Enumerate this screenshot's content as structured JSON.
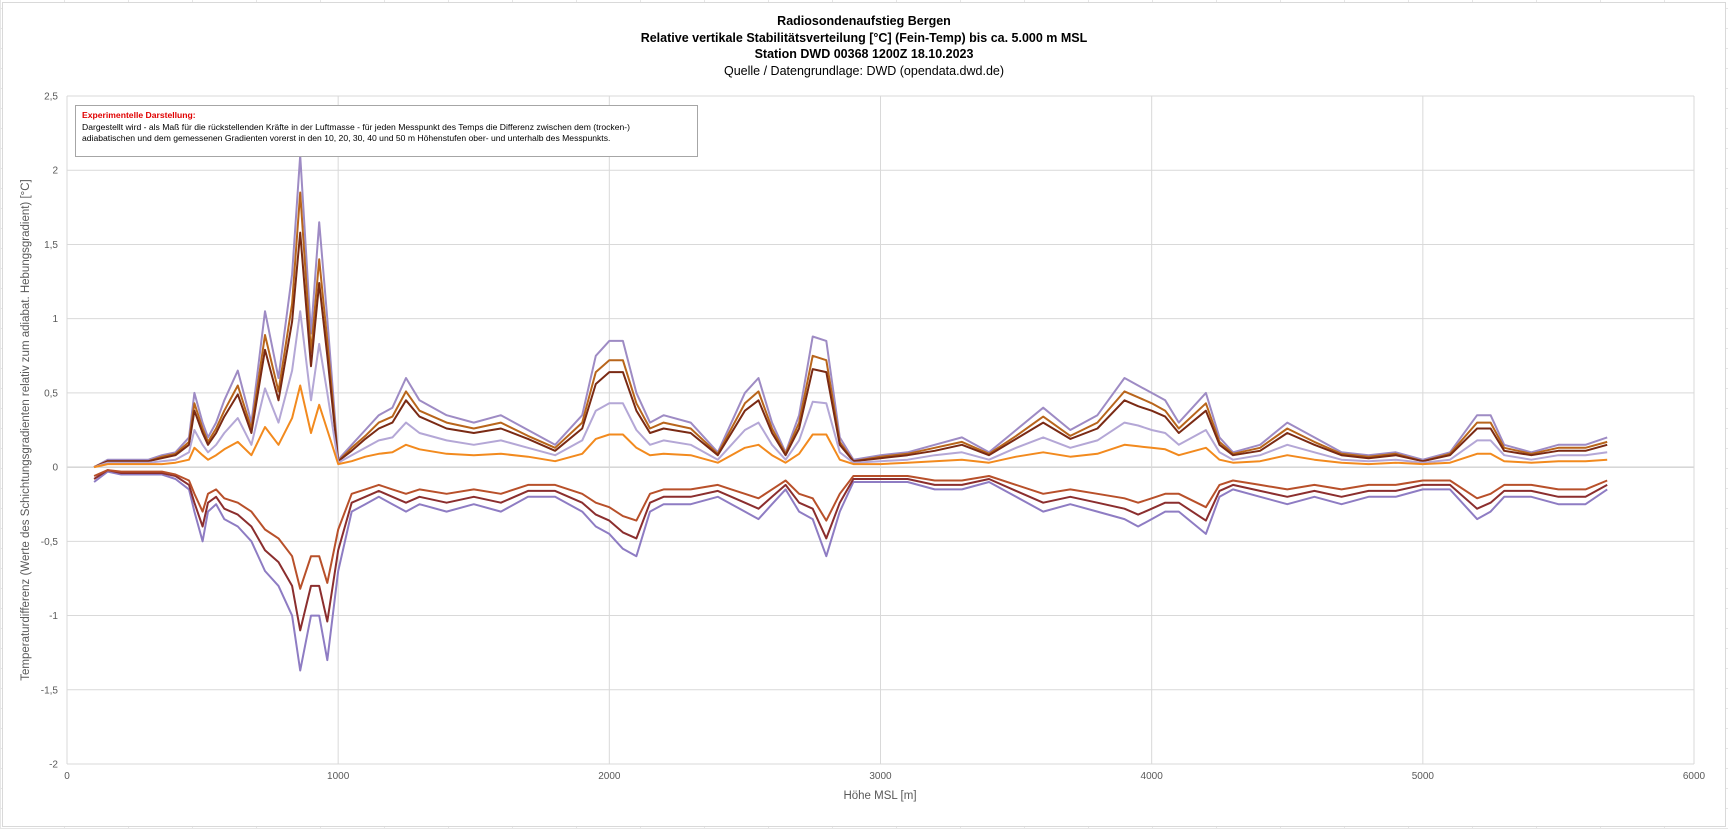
{
  "chart_data": {
    "type": "line",
    "title_lines": [
      "Radiosondenaufstieg Bergen",
      "Relative vertikale Stabilitätsverteilung [°C] (Fein-Temp) bis ca. 5.000 m MSL",
      "Station DWD 00368 1200Z 18.10.2023"
    ],
    "subtitle": "Quelle / Datengrundlage: DWD (opendata.dwd.de)",
    "annotation": {
      "heading": "Experimentelle Darstellung:",
      "line1": "Dargestellt wird - als Maß für die rückstellenden Kräfte in der Luftmasse - für jeden Messpunkt des Temps  die Differenz zwischen dem (trocken-)",
      "line2": "adiabatischen und dem gemessenen Gradienten vorerst in den 10, 20, 30, 40 und 50 m Höhenstufen ober- und unterhalb des Messpunkts."
    },
    "xlabel": "Höhe MSL [m]",
    "ylabel": "Temperaturdifferenz (Werte des Schichtungsgradienten relativ zum adiabat. Hebungsgradient) [°C]",
    "xlim": [
      0,
      6000
    ],
    "ylim": [
      -2,
      2.5
    ],
    "xticks": [
      0,
      1000,
      2000,
      3000,
      4000,
      5000,
      6000
    ],
    "xtick_labels": [
      "0",
      "1000",
      "2000",
      "3000",
      "4000",
      "5000",
      "6000"
    ],
    "yticks": [
      2.5,
      2,
      1.5,
      1,
      0.5,
      0,
      -0.5,
      -1,
      -1.5,
      -2
    ],
    "ytick_labels": [
      "2,5",
      "2",
      "1,5",
      "1",
      "0,5",
      "0",
      "-0,5",
      "-1",
      "-1,5",
      "-2"
    ],
    "grid": true,
    "legend": "none",
    "x": [
      100,
      150,
      200,
      250,
      300,
      350,
      400,
      450,
      470,
      500,
      520,
      550,
      580,
      630,
      680,
      730,
      780,
      830,
      860,
      900,
      930,
      960,
      1000,
      1050,
      1100,
      1150,
      1200,
      1250,
      1300,
      1400,
      1500,
      1600,
      1700,
      1800,
      1900,
      1950,
      2000,
      2050,
      2100,
      2150,
      2200,
      2300,
      2400,
      2450,
      2500,
      2550,
      2600,
      2650,
      2700,
      2750,
      2800,
      2850,
      2900,
      3000,
      3100,
      3200,
      3300,
      3400,
      3500,
      3600,
      3700,
      3800,
      3900,
      3950,
      4000,
      4050,
      4100,
      4200,
      4250,
      4300,
      4400,
      4500,
      4600,
      4700,
      4800,
      4900,
      5000,
      5100,
      5200,
      5250,
      5300,
      5400,
      5500,
      5600,
      5680
    ],
    "series": [
      {
        "color": "#8E7CC3",
        "values": [
          -0.1,
          -0.03,
          -0.05,
          -0.05,
          -0.05,
          -0.05,
          -0.08,
          -0.15,
          -0.3,
          -0.5,
          -0.3,
          -0.25,
          -0.35,
          -0.4,
          -0.5,
          -0.7,
          -0.8,
          -1.0,
          -1.37,
          -1.0,
          -1.0,
          -1.3,
          -0.7,
          -0.3,
          -0.25,
          -0.2,
          -0.25,
          -0.3,
          -0.25,
          -0.3,
          -0.25,
          -0.3,
          -0.2,
          -0.2,
          -0.3,
          -0.4,
          -0.45,
          -0.55,
          -0.6,
          -0.3,
          -0.25,
          -0.25,
          -0.2,
          -0.25,
          -0.3,
          -0.35,
          -0.25,
          -0.15,
          -0.3,
          -0.35,
          -0.6,
          -0.3,
          -0.1,
          -0.1,
          -0.1,
          -0.15,
          -0.15,
          -0.1,
          -0.2,
          -0.3,
          -0.25,
          -0.3,
          -0.35,
          -0.4,
          -0.35,
          -0.3,
          -0.3,
          -0.45,
          -0.2,
          -0.15,
          -0.2,
          -0.25,
          -0.2,
          -0.25,
          -0.2,
          -0.2,
          -0.15,
          -0.15,
          -0.35,
          -0.3,
          -0.2,
          -0.2,
          -0.25,
          -0.25,
          -0.15
        ]
      },
      {
        "color": "#8B2E2E",
        "values": [
          -0.08,
          -0.02,
          -0.04,
          -0.04,
          -0.04,
          -0.04,
          -0.06,
          -0.12,
          -0.24,
          -0.4,
          -0.24,
          -0.2,
          -0.28,
          -0.32,
          -0.4,
          -0.56,
          -0.64,
          -0.8,
          -1.1,
          -0.8,
          -0.8,
          -1.04,
          -0.56,
          -0.24,
          -0.2,
          -0.16,
          -0.2,
          -0.24,
          -0.2,
          -0.24,
          -0.2,
          -0.24,
          -0.16,
          -0.16,
          -0.24,
          -0.32,
          -0.36,
          -0.44,
          -0.48,
          -0.24,
          -0.2,
          -0.2,
          -0.16,
          -0.2,
          -0.24,
          -0.28,
          -0.2,
          -0.12,
          -0.24,
          -0.28,
          -0.48,
          -0.24,
          -0.08,
          -0.08,
          -0.08,
          -0.12,
          -0.12,
          -0.08,
          -0.16,
          -0.24,
          -0.2,
          -0.24,
          -0.28,
          -0.32,
          -0.28,
          -0.24,
          -0.24,
          -0.36,
          -0.16,
          -0.12,
          -0.16,
          -0.2,
          -0.16,
          -0.2,
          -0.16,
          -0.16,
          -0.12,
          -0.12,
          -0.28,
          -0.24,
          -0.16,
          -0.16,
          -0.2,
          -0.2,
          -0.12
        ]
      },
      {
        "color": "#B8502A",
        "values": [
          -0.06,
          -0.02,
          -0.03,
          -0.03,
          -0.03,
          -0.03,
          -0.05,
          -0.09,
          -0.18,
          -0.3,
          -0.18,
          -0.15,
          -0.21,
          -0.24,
          -0.3,
          -0.42,
          -0.48,
          -0.6,
          -0.82,
          -0.6,
          -0.6,
          -0.78,
          -0.42,
          -0.18,
          -0.15,
          -0.12,
          -0.15,
          -0.18,
          -0.15,
          -0.18,
          -0.15,
          -0.18,
          -0.12,
          -0.12,
          -0.18,
          -0.24,
          -0.27,
          -0.33,
          -0.36,
          -0.18,
          -0.15,
          -0.15,
          -0.12,
          -0.15,
          -0.18,
          -0.21,
          -0.15,
          -0.09,
          -0.18,
          -0.21,
          -0.36,
          -0.18,
          -0.06,
          -0.06,
          -0.06,
          -0.09,
          -0.09,
          -0.06,
          -0.12,
          -0.18,
          -0.15,
          -0.18,
          -0.21,
          -0.24,
          -0.21,
          -0.18,
          -0.18,
          -0.27,
          -0.12,
          -0.09,
          -0.12,
          -0.15,
          -0.12,
          -0.15,
          -0.12,
          -0.12,
          -0.09,
          -0.09,
          -0.21,
          -0.18,
          -0.12,
          -0.12,
          -0.15,
          -0.15,
          -0.09
        ]
      },
      {
        "color": "#9E8BC4",
        "values": [
          0,
          0.05,
          0.05,
          0.05,
          0.05,
          0.08,
          0.1,
          0.2,
          0.5,
          0.3,
          0.2,
          0.3,
          0.45,
          0.65,
          0.3,
          1.05,
          0.6,
          1.3,
          2.1,
          0.9,
          1.65,
          1.0,
          0.05,
          0.15,
          0.25,
          0.35,
          0.4,
          0.6,
          0.45,
          0.35,
          0.3,
          0.35,
          0.25,
          0.15,
          0.35,
          0.75,
          0.85,
          0.85,
          0.5,
          0.3,
          0.35,
          0.3,
          0.1,
          0.3,
          0.5,
          0.6,
          0.3,
          0.1,
          0.35,
          0.88,
          0.85,
          0.2,
          0.05,
          0.08,
          0.1,
          0.15,
          0.2,
          0.1,
          0.25,
          0.4,
          0.25,
          0.35,
          0.6,
          0.55,
          0.5,
          0.45,
          0.3,
          0.5,
          0.2,
          0.1,
          0.15,
          0.3,
          0.2,
          0.1,
          0.08,
          0.1,
          0.05,
          0.1,
          0.35,
          0.35,
          0.15,
          0.1,
          0.15,
          0.15,
          0.2
        ]
      },
      {
        "color": "#B8651B",
        "values": [
          0,
          0.04,
          0.04,
          0.04,
          0.04,
          0.07,
          0.09,
          0.17,
          0.43,
          0.26,
          0.17,
          0.26,
          0.38,
          0.55,
          0.26,
          0.89,
          0.51,
          1.1,
          1.85,
          0.77,
          1.4,
          0.85,
          0.04,
          0.13,
          0.21,
          0.3,
          0.34,
          0.51,
          0.38,
          0.3,
          0.26,
          0.3,
          0.21,
          0.13,
          0.3,
          0.64,
          0.72,
          0.72,
          0.43,
          0.26,
          0.3,
          0.26,
          0.09,
          0.26,
          0.43,
          0.51,
          0.26,
          0.09,
          0.3,
          0.75,
          0.72,
          0.17,
          0.04,
          0.07,
          0.09,
          0.13,
          0.17,
          0.09,
          0.21,
          0.34,
          0.21,
          0.3,
          0.51,
          0.47,
          0.43,
          0.38,
          0.26,
          0.43,
          0.17,
          0.09,
          0.13,
          0.26,
          0.17,
          0.09,
          0.07,
          0.09,
          0.04,
          0.09,
          0.3,
          0.3,
          0.13,
          0.09,
          0.13,
          0.13,
          0.17
        ]
      },
      {
        "color": "#7A2A14",
        "values": [
          0,
          0.04,
          0.04,
          0.04,
          0.04,
          0.06,
          0.08,
          0.15,
          0.38,
          0.23,
          0.15,
          0.23,
          0.34,
          0.49,
          0.23,
          0.79,
          0.45,
          0.98,
          1.58,
          0.68,
          1.24,
          0.75,
          0.04,
          0.11,
          0.19,
          0.26,
          0.3,
          0.45,
          0.34,
          0.26,
          0.23,
          0.26,
          0.19,
          0.11,
          0.26,
          0.56,
          0.64,
          0.64,
          0.38,
          0.23,
          0.26,
          0.23,
          0.08,
          0.23,
          0.38,
          0.45,
          0.23,
          0.08,
          0.26,
          0.66,
          0.64,
          0.15,
          0.04,
          0.06,
          0.08,
          0.11,
          0.15,
          0.08,
          0.19,
          0.3,
          0.19,
          0.26,
          0.45,
          0.41,
          0.38,
          0.34,
          0.23,
          0.38,
          0.15,
          0.08,
          0.11,
          0.23,
          0.15,
          0.08,
          0.06,
          0.08,
          0.04,
          0.08,
          0.26,
          0.26,
          0.11,
          0.08,
          0.11,
          0.11,
          0.15
        ]
      },
      {
        "color": "#B4A7D6",
        "values": [
          0,
          0.03,
          0.03,
          0.03,
          0.03,
          0.04,
          0.05,
          0.1,
          0.25,
          0.15,
          0.1,
          0.15,
          0.23,
          0.33,
          0.15,
          0.53,
          0.3,
          0.65,
          1.05,
          0.45,
          0.83,
          0.5,
          0.03,
          0.08,
          0.13,
          0.18,
          0.2,
          0.3,
          0.23,
          0.18,
          0.15,
          0.18,
          0.13,
          0.08,
          0.18,
          0.38,
          0.43,
          0.43,
          0.25,
          0.15,
          0.18,
          0.15,
          0.05,
          0.15,
          0.25,
          0.3,
          0.15,
          0.05,
          0.18,
          0.44,
          0.43,
          0.1,
          0.03,
          0.04,
          0.05,
          0.08,
          0.1,
          0.05,
          0.13,
          0.2,
          0.13,
          0.18,
          0.3,
          0.28,
          0.25,
          0.23,
          0.15,
          0.25,
          0.1,
          0.05,
          0.08,
          0.15,
          0.1,
          0.05,
          0.04,
          0.05,
          0.03,
          0.05,
          0.18,
          0.18,
          0.08,
          0.05,
          0.08,
          0.08,
          0.1
        ]
      },
      {
        "color": "#F28A1E",
        "values": [
          0,
          0.02,
          0.02,
          0.02,
          0.02,
          0.02,
          0.03,
          0.05,
          0.13,
          0.08,
          0.05,
          0.08,
          0.12,
          0.17,
          0.08,
          0.27,
          0.15,
          0.33,
          0.55,
          0.23,
          0.42,
          0.25,
          0.02,
          0.04,
          0.07,
          0.09,
          0.1,
          0.15,
          0.12,
          0.09,
          0.08,
          0.09,
          0.07,
          0.04,
          0.09,
          0.19,
          0.22,
          0.22,
          0.13,
          0.08,
          0.09,
          0.08,
          0.03,
          0.08,
          0.13,
          0.15,
          0.08,
          0.03,
          0.09,
          0.22,
          0.22,
          0.05,
          0.02,
          0.02,
          0.03,
          0.04,
          0.05,
          0.03,
          0.07,
          0.1,
          0.07,
          0.09,
          0.15,
          0.14,
          0.13,
          0.12,
          0.08,
          0.13,
          0.05,
          0.03,
          0.04,
          0.08,
          0.05,
          0.03,
          0.02,
          0.03,
          0.02,
          0.03,
          0.09,
          0.09,
          0.04,
          0.03,
          0.04,
          0.04,
          0.05
        ]
      }
    ]
  }
}
